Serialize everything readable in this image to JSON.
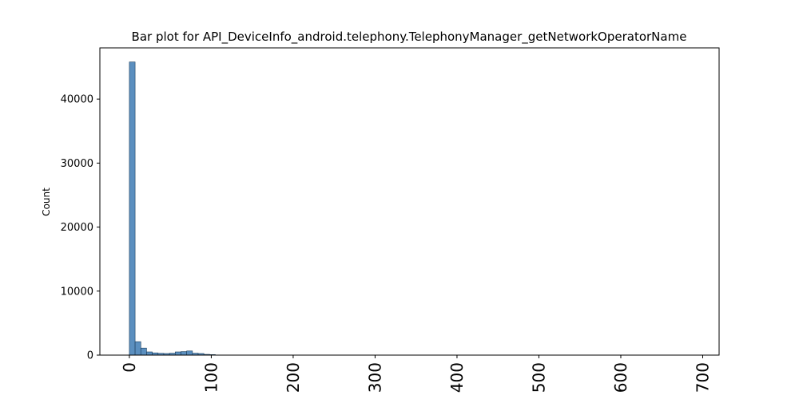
{
  "chart_data": {
    "type": "bar",
    "title": "Bar plot for API_DeviceInfo_android.telephony.TelephonyManager_getNetworkOperatorName",
    "xlabel": "",
    "ylabel": "Count",
    "xlim": [
      -36,
      720
    ],
    "ylim": [
      0,
      48000
    ],
    "x_ticks": [
      0,
      100,
      200,
      300,
      400,
      500,
      600,
      700
    ],
    "x_tick_labels": [
      "0",
      "100",
      "200",
      "300",
      "400",
      "500",
      "600",
      "700"
    ],
    "y_ticks": [
      0,
      10000,
      20000,
      30000,
      40000
    ],
    "y_tick_labels": [
      "0",
      "10000",
      "20000",
      "30000",
      "40000"
    ],
    "bin_width": 7,
    "bins": [
      {
        "x": 0,
        "value": 45800
      },
      {
        "x": 7,
        "value": 2100
      },
      {
        "x": 14,
        "value": 1100
      },
      {
        "x": 21,
        "value": 500
      },
      {
        "x": 28,
        "value": 350
      },
      {
        "x": 35,
        "value": 280
      },
      {
        "x": 42,
        "value": 250
      },
      {
        "x": 49,
        "value": 300
      },
      {
        "x": 56,
        "value": 500
      },
      {
        "x": 63,
        "value": 550
      },
      {
        "x": 70,
        "value": 650
      },
      {
        "x": 77,
        "value": 300
      },
      {
        "x": 84,
        "value": 250
      },
      {
        "x": 91,
        "value": 120
      },
      {
        "x": 98,
        "value": 80
      },
      {
        "x": 105,
        "value": 20
      },
      {
        "x": 112,
        "value": 10
      }
    ],
    "bar_color": "#5b8fbf",
    "edge_color": "#1a3d5c",
    "grid": false,
    "x_tick_rotation": "vertical"
  }
}
